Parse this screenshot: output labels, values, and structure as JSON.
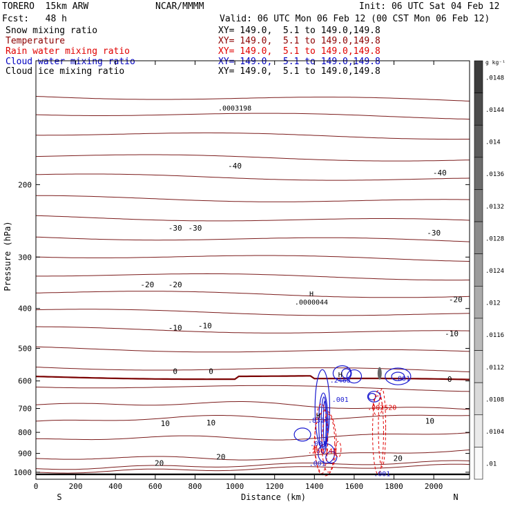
{
  "header": {
    "model": "TORERO  15km ARW",
    "org": "NCAR/MMMM",
    "init": "Init: 06 UTC Sat 04 Feb 12",
    "fcst": "Fcst:   48 h",
    "valid": "Valid: 06 UTC Mon 06 Feb 12 (00 CST Mon 06 Feb 12)"
  },
  "legend": [
    {
      "field": "Snow mixing ratio",
      "xy": "",
      "color": "#000000"
    },
    {
      "field": "Temperature",
      "xy": "XY= 149.0,  5.1 to 149.0,149.8",
      "color": "#8b0000"
    },
    {
      "field": "Rain water mixing ratio",
      "xy": "XY= 149.0,  5.1 to 149.0,149.8",
      "color": "#e00000"
    },
    {
      "field": "Cloud water mixing ratio",
      "xy": "XY= 149.0,  5.1 to 149.0,149.8",
      "color": "#0000c0"
    },
    {
      "field": "Cloud ice mixing ratio",
      "xy": "XY= 149.0,  5.1 to 149.0,149.8",
      "color": "#000000"
    }
  ],
  "snow_xy": "XY= 149.0,  5.1 to 149.0,149.8",
  "colorbar_unit": "g kg⁻¹",
  "chart_data": {
    "type": "contour-cross-section",
    "xlabel": "Distance (km)",
    "ylabel": "Pressure (hPa)",
    "xlim": [
      0,
      2180
    ],
    "ylim": [
      1040,
      100
    ],
    "x_ticks": [
      0,
      200,
      400,
      600,
      800,
      1000,
      1200,
      1400,
      1600,
      1800,
      2000
    ],
    "y_ticks": [
      200,
      300,
      400,
      500,
      600,
      700,
      800,
      900,
      1000
    ],
    "x_endpoints": [
      "S",
      "N"
    ],
    "colorbar_ticks": [
      ".0148",
      ".0144",
      ".014",
      ".0136",
      ".0132",
      ".0128",
      ".0124",
      ".012",
      ".0116",
      ".0112",
      ".0108",
      ".0104",
      ".01"
    ],
    "temperature_label_values": [
      "-40",
      "-30",
      "-20",
      "-10",
      "0",
      "10",
      "20"
    ],
    "annotations": [
      {
        "text": "H",
        "x": 1385,
        "y": 368
      },
      {
        "text": ".0000044",
        "x": 1385,
        "y": 385
      },
      {
        "text": ".0003198",
        "x": 1000,
        "y": 130
      },
      {
        "text": "H",
        "x": 1530,
        "y": 578
      },
      {
        "text": ".2468",
        "x": 1530,
        "y": 596
      },
      {
        "text": ".001",
        "x": 1840,
        "y": 590
      },
      {
        "text": ".001",
        "x": 1530,
        "y": 664
      },
      {
        "text": ".002520",
        "x": 1740,
        "y": 695
      },
      {
        "text": "H",
        "x": 1420,
        "y": 728
      },
      {
        "text": ".8326",
        "x": 1420,
        "y": 746
      },
      {
        "text": ".001",
        "x": 1420,
        "y": 850
      },
      {
        "text": "H",
        "x": 1405,
        "y": 869
      },
      {
        "text": ".260144",
        "x": 1440,
        "y": 886
      },
      {
        "text": ".001",
        "x": 1415,
        "y": 950
      },
      {
        "text": ".001",
        "x": 1740,
        "y": 1007
      }
    ]
  }
}
